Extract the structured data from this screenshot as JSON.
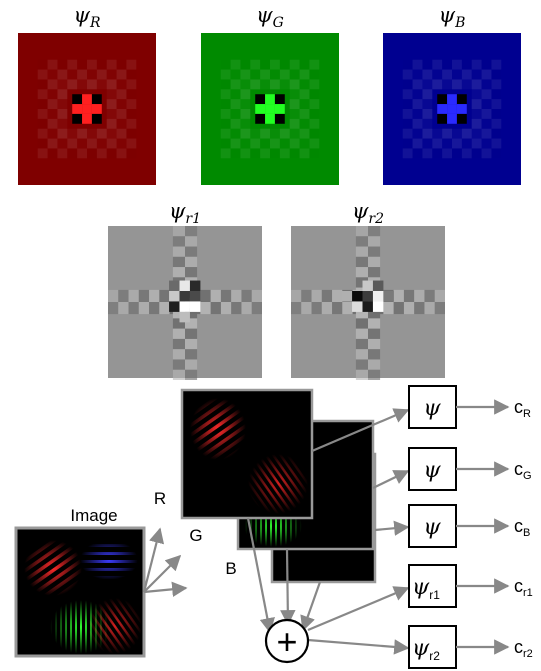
{
  "filters": [
    {
      "symbol": "ψ",
      "sub": "R",
      "base": "#7f0000",
      "accent": "#ff2020",
      "kind": "color"
    },
    {
      "symbol": "ψ",
      "sub": "G",
      "base": "#008a00",
      "accent": "#22ff22",
      "kind": "color"
    },
    {
      "symbol": "ψ",
      "sub": "B",
      "base": "#000090",
      "accent": "#2a2aff",
      "kind": "color"
    },
    {
      "symbol": "ψ",
      "sub": "r1",
      "base": "#959595",
      "accent": "#ffffff",
      "kind": "gray"
    },
    {
      "symbol": "ψ",
      "sub": "r2",
      "base": "#959595",
      "accent": "#ffffff",
      "kind": "gray"
    }
  ],
  "input": {
    "label": "Image"
  },
  "channels": [
    {
      "label": "R"
    },
    {
      "label": "G"
    },
    {
      "label": "B"
    }
  ],
  "sum_symbol": "+",
  "operators": [
    {
      "symbol": "ψ",
      "sub": ""
    },
    {
      "symbol": "ψ",
      "sub": ""
    },
    {
      "symbol": "ψ",
      "sub": ""
    },
    {
      "symbol": "ψ",
      "sub": "r1"
    },
    {
      "symbol": "ψ",
      "sub": "r2"
    }
  ],
  "outputs": [
    {
      "main": "c",
      "sub": "R"
    },
    {
      "main": "c",
      "sub": "G"
    },
    {
      "main": "c",
      "sub": "B"
    },
    {
      "main": "c",
      "sub": "r1"
    },
    {
      "main": "c",
      "sub": "r2"
    }
  ],
  "colors": {
    "arrow": "#888888",
    "frame": "#8a8a8a",
    "red": "#ff2a2a",
    "green": "#30ff30",
    "blue": "#3c3cff"
  }
}
